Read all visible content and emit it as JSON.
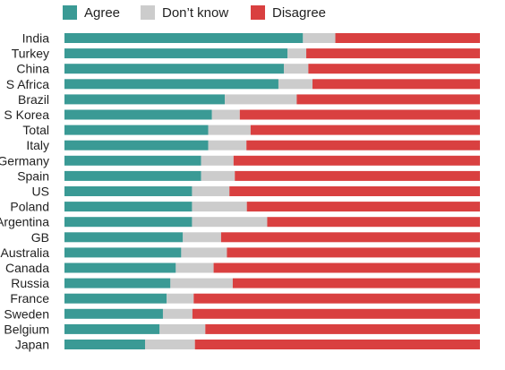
{
  "chart_data": {
    "type": "bar",
    "orientation": "horizontal",
    "stacked": true,
    "percent_stacked": true,
    "title": "",
    "xlabel": "",
    "ylabel": "",
    "xlim": [
      0,
      1
    ],
    "grid": false,
    "legend_position": "top-left",
    "categories": [
      "India",
      "Turkey",
      "China",
      "S Africa",
      "Brazil",
      "S Korea",
      "Total",
      "Italy",
      "Germany",
      "Spain",
      "US",
      "Poland",
      "Argentina",
      "GB",
      "Australia",
      "Canada",
      "Russia",
      "France",
      "Sweden",
      "Belgium",
      "Japan"
    ],
    "series": [
      {
        "name": "Agree",
        "color": "#3a9a95",
        "values": [
          0.574,
          0.537,
          0.528,
          0.515,
          0.386,
          0.355,
          0.346,
          0.346,
          0.329,
          0.329,
          0.307,
          0.307,
          0.307,
          0.285,
          0.281,
          0.268,
          0.255,
          0.246,
          0.237,
          0.229,
          0.194
        ]
      },
      {
        "name": "Don’t know",
        "color": "#cccccc",
        "values": [
          0.078,
          0.045,
          0.059,
          0.082,
          0.173,
          0.067,
          0.102,
          0.092,
          0.078,
          0.081,
          0.09,
          0.132,
          0.181,
          0.092,
          0.11,
          0.091,
          0.15,
          0.065,
          0.071,
          0.11,
          0.12
        ]
      },
      {
        "name": "Disagree",
        "color": "#d94040",
        "values": [
          0.348,
          0.418,
          0.413,
          0.403,
          0.441,
          0.578,
          0.552,
          0.562,
          0.593,
          0.59,
          0.603,
          0.561,
          0.512,
          0.623,
          0.609,
          0.641,
          0.595,
          0.689,
          0.692,
          0.661,
          0.686
        ]
      }
    ]
  }
}
